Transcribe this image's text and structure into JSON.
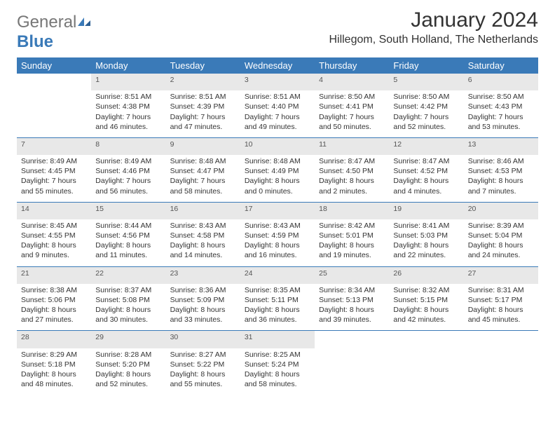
{
  "logo": {
    "general": "General",
    "blue": "Blue"
  },
  "title": "January 2024",
  "location": "Hillegom, South Holland, The Netherlands",
  "colors": {
    "header_bg": "#3a7ab8",
    "header_text": "#ffffff",
    "daynum_bg": "#e8e8e8",
    "daynum_text": "#555555",
    "row_divider": "#3a7ab8",
    "body_text": "#333333",
    "logo_gray": "#777777",
    "logo_blue": "#3a7ab8"
  },
  "days_of_week": [
    "Sunday",
    "Monday",
    "Tuesday",
    "Wednesday",
    "Thursday",
    "Friday",
    "Saturday"
  ],
  "weeks": [
    {
      "nums": [
        "",
        "1",
        "2",
        "3",
        "4",
        "5",
        "6"
      ],
      "cells": [
        {
          "sunrise": "",
          "sunset": "",
          "daylight1": "",
          "daylight2": ""
        },
        {
          "sunrise": "Sunrise: 8:51 AM",
          "sunset": "Sunset: 4:38 PM",
          "daylight1": "Daylight: 7 hours",
          "daylight2": "and 46 minutes."
        },
        {
          "sunrise": "Sunrise: 8:51 AM",
          "sunset": "Sunset: 4:39 PM",
          "daylight1": "Daylight: 7 hours",
          "daylight2": "and 47 minutes."
        },
        {
          "sunrise": "Sunrise: 8:51 AM",
          "sunset": "Sunset: 4:40 PM",
          "daylight1": "Daylight: 7 hours",
          "daylight2": "and 49 minutes."
        },
        {
          "sunrise": "Sunrise: 8:50 AM",
          "sunset": "Sunset: 4:41 PM",
          "daylight1": "Daylight: 7 hours",
          "daylight2": "and 50 minutes."
        },
        {
          "sunrise": "Sunrise: 8:50 AM",
          "sunset": "Sunset: 4:42 PM",
          "daylight1": "Daylight: 7 hours",
          "daylight2": "and 52 minutes."
        },
        {
          "sunrise": "Sunrise: 8:50 AM",
          "sunset": "Sunset: 4:43 PM",
          "daylight1": "Daylight: 7 hours",
          "daylight2": "and 53 minutes."
        }
      ]
    },
    {
      "nums": [
        "7",
        "8",
        "9",
        "10",
        "11",
        "12",
        "13"
      ],
      "cells": [
        {
          "sunrise": "Sunrise: 8:49 AM",
          "sunset": "Sunset: 4:45 PM",
          "daylight1": "Daylight: 7 hours",
          "daylight2": "and 55 minutes."
        },
        {
          "sunrise": "Sunrise: 8:49 AM",
          "sunset": "Sunset: 4:46 PM",
          "daylight1": "Daylight: 7 hours",
          "daylight2": "and 56 minutes."
        },
        {
          "sunrise": "Sunrise: 8:48 AM",
          "sunset": "Sunset: 4:47 PM",
          "daylight1": "Daylight: 7 hours",
          "daylight2": "and 58 minutes."
        },
        {
          "sunrise": "Sunrise: 8:48 AM",
          "sunset": "Sunset: 4:49 PM",
          "daylight1": "Daylight: 8 hours",
          "daylight2": "and 0 minutes."
        },
        {
          "sunrise": "Sunrise: 8:47 AM",
          "sunset": "Sunset: 4:50 PM",
          "daylight1": "Daylight: 8 hours",
          "daylight2": "and 2 minutes."
        },
        {
          "sunrise": "Sunrise: 8:47 AM",
          "sunset": "Sunset: 4:52 PM",
          "daylight1": "Daylight: 8 hours",
          "daylight2": "and 4 minutes."
        },
        {
          "sunrise": "Sunrise: 8:46 AM",
          "sunset": "Sunset: 4:53 PM",
          "daylight1": "Daylight: 8 hours",
          "daylight2": "and 7 minutes."
        }
      ]
    },
    {
      "nums": [
        "14",
        "15",
        "16",
        "17",
        "18",
        "19",
        "20"
      ],
      "cells": [
        {
          "sunrise": "Sunrise: 8:45 AM",
          "sunset": "Sunset: 4:55 PM",
          "daylight1": "Daylight: 8 hours",
          "daylight2": "and 9 minutes."
        },
        {
          "sunrise": "Sunrise: 8:44 AM",
          "sunset": "Sunset: 4:56 PM",
          "daylight1": "Daylight: 8 hours",
          "daylight2": "and 11 minutes."
        },
        {
          "sunrise": "Sunrise: 8:43 AM",
          "sunset": "Sunset: 4:58 PM",
          "daylight1": "Daylight: 8 hours",
          "daylight2": "and 14 minutes."
        },
        {
          "sunrise": "Sunrise: 8:43 AM",
          "sunset": "Sunset: 4:59 PM",
          "daylight1": "Daylight: 8 hours",
          "daylight2": "and 16 minutes."
        },
        {
          "sunrise": "Sunrise: 8:42 AM",
          "sunset": "Sunset: 5:01 PM",
          "daylight1": "Daylight: 8 hours",
          "daylight2": "and 19 minutes."
        },
        {
          "sunrise": "Sunrise: 8:41 AM",
          "sunset": "Sunset: 5:03 PM",
          "daylight1": "Daylight: 8 hours",
          "daylight2": "and 22 minutes."
        },
        {
          "sunrise": "Sunrise: 8:39 AM",
          "sunset": "Sunset: 5:04 PM",
          "daylight1": "Daylight: 8 hours",
          "daylight2": "and 24 minutes."
        }
      ]
    },
    {
      "nums": [
        "21",
        "22",
        "23",
        "24",
        "25",
        "26",
        "27"
      ],
      "cells": [
        {
          "sunrise": "Sunrise: 8:38 AM",
          "sunset": "Sunset: 5:06 PM",
          "daylight1": "Daylight: 8 hours",
          "daylight2": "and 27 minutes."
        },
        {
          "sunrise": "Sunrise: 8:37 AM",
          "sunset": "Sunset: 5:08 PM",
          "daylight1": "Daylight: 8 hours",
          "daylight2": "and 30 minutes."
        },
        {
          "sunrise": "Sunrise: 8:36 AM",
          "sunset": "Sunset: 5:09 PM",
          "daylight1": "Daylight: 8 hours",
          "daylight2": "and 33 minutes."
        },
        {
          "sunrise": "Sunrise: 8:35 AM",
          "sunset": "Sunset: 5:11 PM",
          "daylight1": "Daylight: 8 hours",
          "daylight2": "and 36 minutes."
        },
        {
          "sunrise": "Sunrise: 8:34 AM",
          "sunset": "Sunset: 5:13 PM",
          "daylight1": "Daylight: 8 hours",
          "daylight2": "and 39 minutes."
        },
        {
          "sunrise": "Sunrise: 8:32 AM",
          "sunset": "Sunset: 5:15 PM",
          "daylight1": "Daylight: 8 hours",
          "daylight2": "and 42 minutes."
        },
        {
          "sunrise": "Sunrise: 8:31 AM",
          "sunset": "Sunset: 5:17 PM",
          "daylight1": "Daylight: 8 hours",
          "daylight2": "and 45 minutes."
        }
      ]
    },
    {
      "nums": [
        "28",
        "29",
        "30",
        "31",
        "",
        "",
        ""
      ],
      "cells": [
        {
          "sunrise": "Sunrise: 8:29 AM",
          "sunset": "Sunset: 5:18 PM",
          "daylight1": "Daylight: 8 hours",
          "daylight2": "and 48 minutes."
        },
        {
          "sunrise": "Sunrise: 8:28 AM",
          "sunset": "Sunset: 5:20 PM",
          "daylight1": "Daylight: 8 hours",
          "daylight2": "and 52 minutes."
        },
        {
          "sunrise": "Sunrise: 8:27 AM",
          "sunset": "Sunset: 5:22 PM",
          "daylight1": "Daylight: 8 hours",
          "daylight2": "and 55 minutes."
        },
        {
          "sunrise": "Sunrise: 8:25 AM",
          "sunset": "Sunset: 5:24 PM",
          "daylight1": "Daylight: 8 hours",
          "daylight2": "and 58 minutes."
        },
        {
          "sunrise": "",
          "sunset": "",
          "daylight1": "",
          "daylight2": ""
        },
        {
          "sunrise": "",
          "sunset": "",
          "daylight1": "",
          "daylight2": ""
        },
        {
          "sunrise": "",
          "sunset": "",
          "daylight1": "",
          "daylight2": ""
        }
      ]
    }
  ]
}
